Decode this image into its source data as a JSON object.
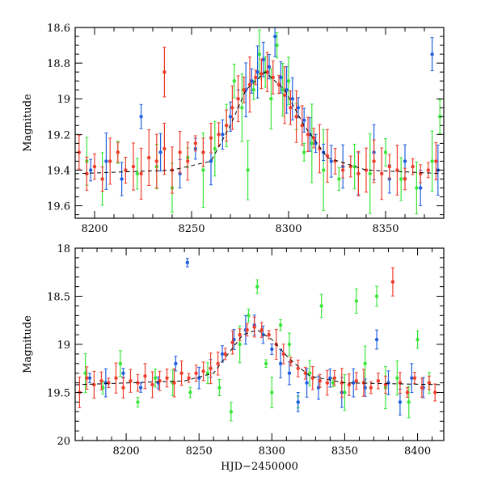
{
  "chart_data": [
    {
      "type": "scatter",
      "ylabel": "Magnitude",
      "xlabel": "",
      "xlim": [
        8190,
        8380
      ],
      "ylim": [
        19.67,
        18.6
      ],
      "y_inverted": true,
      "xticks": [
        8200,
        8250,
        8300,
        8350
      ],
      "yticks": [
        18.6,
        18.8,
        19,
        19.2,
        19.4,
        19.6
      ],
      "ytick_labels": [
        "18.6",
        "18.8",
        "19",
        "19.2",
        "19.4",
        "19.6"
      ],
      "xtick_labels": [
        "8200",
        "8250",
        "8300",
        "8350"
      ],
      "grid": false,
      "series": [
        {
          "color": "#39e639",
          "marker": "dot-with-errorbar",
          "points": [
            [
              8196,
              19.35
            ],
            [
              8204,
              19.45
            ],
            [
              8212,
              19.3
            ],
            [
              8222,
              19.42
            ],
            [
              8232,
              19.38
            ],
            [
              8240,
              19.5
            ],
            [
              8248,
              19.33
            ],
            [
              8256,
              19.4
            ],
            [
              8262,
              19.28
            ],
            [
              8268,
              19.15
            ],
            [
              8272,
              18.9
            ],
            [
              8276,
              19.05
            ],
            [
              8279,
              19.4
            ],
            [
              8282,
              18.95
            ],
            [
              8285,
              18.75
            ],
            [
              8288,
              18.85
            ],
            [
              8291,
              19.0
            ],
            [
              8294,
              18.7
            ],
            [
              8297,
              18.95
            ],
            [
              8300,
              18.9
            ],
            [
              8304,
              19.1
            ],
            [
              8308,
              19.3
            ],
            [
              8312,
              19.25
            ],
            [
              8318,
              19.4
            ],
            [
              8326,
              19.45
            ],
            [
              8334,
              19.38
            ],
            [
              8342,
              19.42
            ],
            [
              8350,
              19.3
            ],
            [
              8358,
              19.45
            ],
            [
              8366,
              19.5
            ],
            [
              8374,
              19.35
            ],
            [
              8378,
              19.1
            ]
          ]
        },
        {
          "color": "#1f5fe0",
          "marker": "dot-with-errorbar",
          "points": [
            [
              8198,
              19.4
            ],
            [
              8206,
              19.35
            ],
            [
              8214,
              19.45
            ],
            [
              8224,
              19.1
            ],
            [
              8234,
              19.3
            ],
            [
              8244,
              19.42
            ],
            [
              8252,
              19.28
            ],
            [
              8260,
              19.35
            ],
            [
              8266,
              19.2
            ],
            [
              8270,
              19.1
            ],
            [
              8274,
              19.0
            ],
            [
              8278,
              18.95
            ],
            [
              8281,
              18.9
            ],
            [
              8284,
              18.85
            ],
            [
              8287,
              18.78
            ],
            [
              8290,
              18.82
            ],
            [
              8293,
              18.65
            ],
            [
              8296,
              18.88
            ],
            [
              8299,
              18.95
            ],
            [
              8302,
              19.0
            ],
            [
              8305,
              19.05
            ],
            [
              8308,
              19.12
            ],
            [
              8311,
              19.2
            ],
            [
              8314,
              19.25
            ],
            [
              8318,
              19.3
            ],
            [
              8322,
              19.35
            ],
            [
              8328,
              19.38
            ],
            [
              8336,
              19.42
            ],
            [
              8344,
              19.3
            ],
            [
              8352,
              19.45
            ],
            [
              8360,
              19.35
            ],
            [
              8368,
              19.5
            ],
            [
              8374,
              18.75
            ],
            [
              8377,
              19.4
            ]
          ]
        },
        {
          "color": "#f03c2a",
          "marker": "dot-with-errorbar",
          "points": [
            [
              8192,
              19.3
            ],
            [
              8196,
              19.42
            ],
            [
              8200,
              19.38
            ],
            [
              8204,
              19.45
            ],
            [
              8208,
              19.35
            ],
            [
              8212,
              19.3
            ],
            [
              8216,
              19.4
            ],
            [
              8220,
              19.38
            ],
            [
              8224,
              19.42
            ],
            [
              8228,
              19.33
            ],
            [
              8232,
              19.35
            ],
            [
              8236,
              19.28
            ],
            [
              8240,
              19.4
            ],
            [
              8244,
              19.3
            ],
            [
              8248,
              19.35
            ],
            [
              8252,
              19.25
            ],
            [
              8256,
              19.3
            ],
            [
              8260,
              19.22
            ],
            [
              8264,
              19.2
            ],
            [
              8268,
              19.15
            ],
            [
              8271,
              19.05
            ],
            [
              8274,
              19.0
            ],
            [
              8277,
              18.95
            ],
            [
              8280,
              18.92
            ],
            [
              8283,
              18.88
            ],
            [
              8286,
              18.86
            ],
            [
              8289,
              18.85
            ],
            [
              8292,
              18.88
            ],
            [
              8295,
              18.92
            ],
            [
              8298,
              18.98
            ],
            [
              8301,
              19.05
            ],
            [
              8304,
              19.1
            ],
            [
              8307,
              19.15
            ],
            [
              8310,
              19.2
            ],
            [
              8313,
              19.22
            ],
            [
              8316,
              19.28
            ],
            [
              8320,
              19.32
            ],
            [
              8324,
              19.35
            ],
            [
              8328,
              19.4
            ],
            [
              8332,
              19.38
            ],
            [
              8336,
              19.42
            ],
            [
              8340,
              19.4
            ],
            [
              8344,
              19.35
            ],
            [
              8348,
              19.42
            ],
            [
              8352,
              19.38
            ],
            [
              8356,
              19.4
            ],
            [
              8360,
              19.45
            ],
            [
              8364,
              19.38
            ],
            [
              8368,
              19.42
            ],
            [
              8372,
              19.4
            ],
            [
              8376,
              19.35
            ],
            [
              8236,
              18.85
            ]
          ]
        }
      ],
      "model_curve": {
        "color": "#000000",
        "style": "dashed",
        "points": [
          [
            8190,
            19.42
          ],
          [
            8240,
            19.4
          ],
          [
            8260,
            19.35
          ],
          [
            8270,
            19.15
          ],
          [
            8278,
            18.95
          ],
          [
            8288,
            18.85
          ],
          [
            8298,
            18.95
          ],
          [
            8308,
            19.15
          ],
          [
            8320,
            19.33
          ],
          [
            8340,
            19.4
          ],
          [
            8380,
            19.42
          ]
        ]
      }
    },
    {
      "type": "scatter",
      "ylabel": "Magnitude",
      "xlabel": "HJD−2450000",
      "xlim": [
        8165,
        8418
      ],
      "ylim": [
        20.0,
        18.0
      ],
      "y_inverted": true,
      "xticks": [
        8200,
        8250,
        8300,
        8350,
        8400
      ],
      "yticks": [
        18,
        18.5,
        19,
        19.5,
        20
      ],
      "ytick_labels": [
        "18",
        "18.5",
        "19",
        "19.5",
        "20"
      ],
      "xtick_labels": [
        "8200",
        "8250",
        "8300",
        "8350",
        "8400"
      ],
      "grid": false,
      "series": [
        {
          "color": "#39e639",
          "marker": "dot-with-errorbar",
          "points": [
            [
              8172,
              19.3
            ],
            [
              8184,
              19.45
            ],
            [
              8196,
              19.2
            ],
            [
              8208,
              19.6
            ],
            [
              8220,
              19.35
            ],
            [
              8232,
              19.4
            ],
            [
              8244,
              19.5
            ],
            [
              8256,
              19.3
            ],
            [
              8264,
              19.45
            ],
            [
              8272,
              19.7
            ],
            [
              8278,
              19.0
            ],
            [
              8284,
              18.7
            ],
            [
              8290,
              18.4
            ],
            [
              8296,
              19.2
            ],
            [
              8300,
              19.5
            ],
            [
              8306,
              18.8
            ],
            [
              8312,
              19.0
            ],
            [
              8318,
              19.6
            ],
            [
              8326,
              19.3
            ],
            [
              8334,
              18.6
            ],
            [
              8342,
              19.4
            ],
            [
              8350,
              19.5
            ],
            [
              8358,
              18.55
            ],
            [
              8364,
              19.2
            ],
            [
              8372,
              18.5
            ],
            [
              8378,
              19.45
            ],
            [
              8386,
              19.35
            ],
            [
              8394,
              19.6
            ],
            [
              8400,
              18.95
            ],
            [
              8408,
              19.4
            ]
          ]
        },
        {
          "color": "#1f5fe0",
          "marker": "dot-with-errorbar",
          "points": [
            [
              8175,
              19.35
            ],
            [
              8186,
              19.4
            ],
            [
              8198,
              19.3
            ],
            [
              8210,
              19.45
            ],
            [
              8222,
              19.4
            ],
            [
              8234,
              19.2
            ],
            [
              8242,
              18.15
            ],
            [
              8250,
              19.35
            ],
            [
              8258,
              19.25
            ],
            [
              8266,
              19.1
            ],
            [
              8274,
              18.95
            ],
            [
              8282,
              18.85
            ],
            [
              8288,
              18.8
            ],
            [
              8294,
              18.9
            ],
            [
              8300,
              19.05
            ],
            [
              8306,
              19.2
            ],
            [
              8312,
              19.3
            ],
            [
              8318,
              19.6
            ],
            [
              8324,
              19.4
            ],
            [
              8332,
              19.45
            ],
            [
              8340,
              19.35
            ],
            [
              8348,
              19.5
            ],
            [
              8356,
              19.4
            ],
            [
              8364,
              19.45
            ],
            [
              8372,
              18.95
            ],
            [
              8380,
              19.4
            ],
            [
              8388,
              19.6
            ],
            [
              8396,
              19.35
            ],
            [
              8404,
              19.45
            ]
          ]
        },
        {
          "color": "#f03c2a",
          "marker": "dot-with-errorbar",
          "points": [
            [
              8168,
              19.5
            ],
            [
              8173,
              19.35
            ],
            [
              8178,
              19.42
            ],
            [
              8183,
              19.38
            ],
            [
              8188,
              19.4
            ],
            [
              8193,
              19.35
            ],
            [
              8198,
              19.45
            ],
            [
              8203,
              19.38
            ],
            [
              8208,
              19.4
            ],
            [
              8213,
              19.33
            ],
            [
              8218,
              19.42
            ],
            [
              8223,
              19.38
            ],
            [
              8228,
              19.35
            ],
            [
              8233,
              19.4
            ],
            [
              8238,
              19.3
            ],
            [
              8243,
              19.35
            ],
            [
              8248,
              19.3
            ],
            [
              8253,
              19.28
            ],
            [
              8258,
              19.25
            ],
            [
              8263,
              19.2
            ],
            [
              8268,
              19.1
            ],
            [
              8273,
              18.98
            ],
            [
              8278,
              18.9
            ],
            [
              8283,
              18.85
            ],
            [
              8288,
              18.82
            ],
            [
              8293,
              18.85
            ],
            [
              8298,
              18.9
            ],
            [
              8303,
              19.0
            ],
            [
              8308,
              19.1
            ],
            [
              8313,
              19.18
            ],
            [
              8318,
              19.25
            ],
            [
              8323,
              19.3
            ],
            [
              8328,
              19.35
            ],
            [
              8333,
              19.38
            ],
            [
              8338,
              19.4
            ],
            [
              8343,
              19.35
            ],
            [
              8348,
              19.4
            ],
            [
              8353,
              19.42
            ],
            [
              8358,
              19.38
            ],
            [
              8363,
              19.4
            ],
            [
              8368,
              19.45
            ],
            [
              8373,
              19.38
            ],
            [
              8378,
              19.42
            ],
            [
              8383,
              18.35
            ],
            [
              8388,
              19.4
            ],
            [
              8393,
              19.5
            ],
            [
              8398,
              19.35
            ],
            [
              8403,
              19.45
            ],
            [
              8408,
              19.4
            ],
            [
              8412,
              19.5
            ]
          ]
        }
      ],
      "model_curve": {
        "color": "#000000",
        "style": "dashed",
        "points": [
          [
            8165,
            19.42
          ],
          [
            8240,
            19.38
          ],
          [
            8260,
            19.3
          ],
          [
            8270,
            19.1
          ],
          [
            8280,
            18.9
          ],
          [
            8290,
            18.85
          ],
          [
            8300,
            18.95
          ],
          [
            8312,
            19.15
          ],
          [
            8326,
            19.33
          ],
          [
            8350,
            19.4
          ],
          [
            8418,
            19.42
          ]
        ]
      }
    }
  ]
}
